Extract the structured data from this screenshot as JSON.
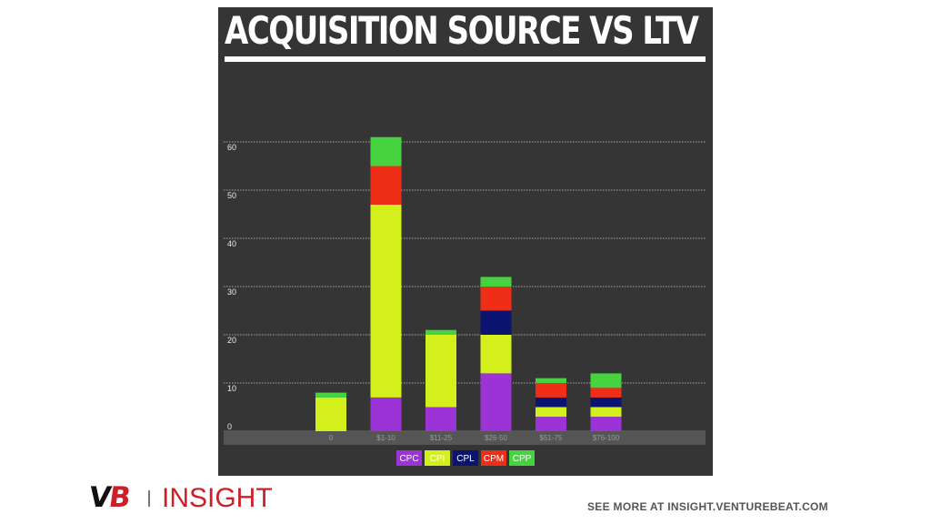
{
  "chart_data": {
    "type": "bar",
    "stacked": true,
    "title": "ACQUISITION SOURCE VS LTV",
    "xlabel": "",
    "ylabel": "",
    "ylim": [
      0,
      60
    ],
    "yticks": [
      0,
      10,
      20,
      30,
      40,
      50,
      60
    ],
    "grid": true,
    "legend": "bottom",
    "categories": [
      "0",
      "$1-10",
      "$11-25",
      "$26-50",
      "$51-75",
      "$76-100"
    ],
    "series": [
      {
        "name": "CPC",
        "color": "#9b33d6",
        "values": [
          0,
          7,
          5,
          12,
          3,
          3
        ]
      },
      {
        "name": "CPI",
        "color": "#d4f01c",
        "values": [
          7,
          40,
          15,
          8,
          2,
          2
        ]
      },
      {
        "name": "CPL",
        "color": "#0b1470",
        "values": [
          0,
          0,
          0,
          5,
          2,
          2
        ]
      },
      {
        "name": "CPM",
        "color": "#ef2e17",
        "values": [
          0,
          8,
          0,
          5,
          3,
          2
        ]
      },
      {
        "name": "CPP",
        "color": "#47d23f",
        "values": [
          1,
          6,
          1,
          2,
          1,
          3
        ]
      }
    ]
  },
  "branding": {
    "logo_v": "V",
    "logo_b": "B",
    "insight": "INSIGHT",
    "see_more": "SEE MORE AT INSIGHT.VENTUREBEAT.COM"
  }
}
